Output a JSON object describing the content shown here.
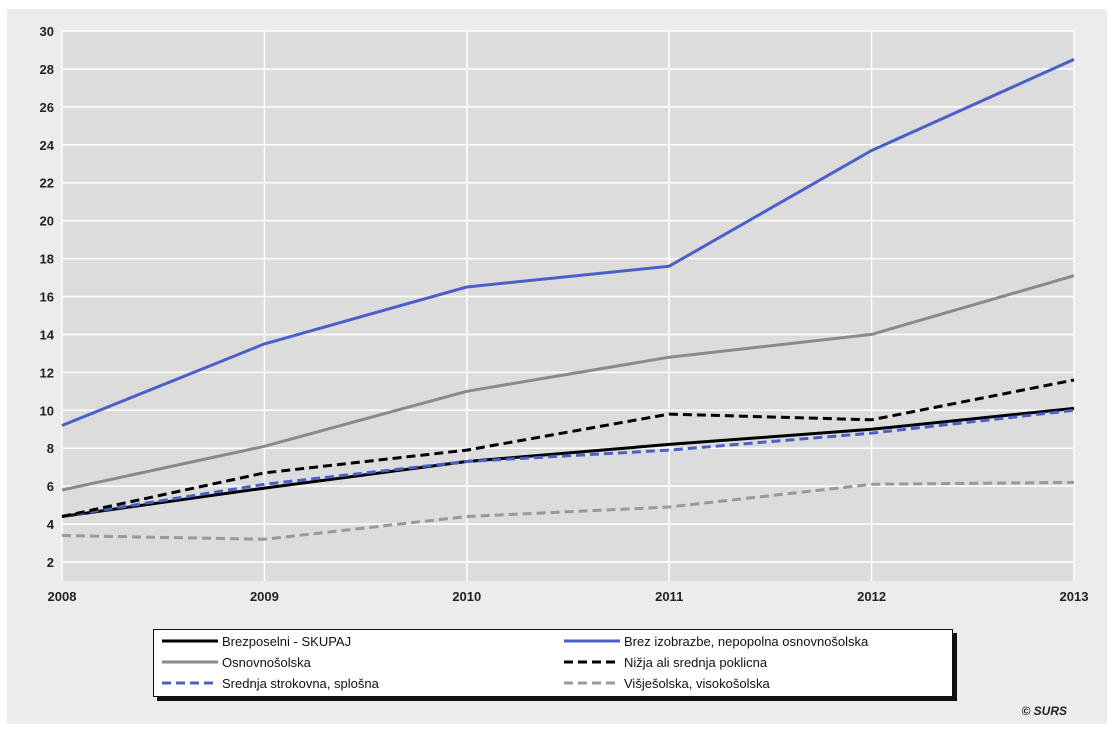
{
  "chart_data": {
    "type": "line",
    "x": [
      "2008",
      "2009",
      "2010",
      "2011",
      "2012",
      "2013"
    ],
    "ylim": [
      1,
      30
    ],
    "yticks": [
      2,
      4,
      6,
      8,
      10,
      12,
      14,
      16,
      18,
      20,
      22,
      24,
      26,
      28,
      30
    ],
    "grid": true,
    "legend_position": "bottom",
    "series": [
      {
        "name": "Brezposelni - SKUPAJ",
        "values": [
          4.4,
          5.9,
          7.3,
          8.2,
          9.0,
          10.1
        ],
        "color": "#000000",
        "dash": "solid"
      },
      {
        "name": "Brez izobrazbe, nepopolna osnovnošolska",
        "values": [
          9.2,
          13.5,
          16.5,
          17.6,
          23.7,
          28.5
        ],
        "color": "#4a5fc8",
        "dash": "solid"
      },
      {
        "name": "Osnovnošolska",
        "values": [
          5.8,
          8.1,
          11.0,
          12.8,
          14.0,
          17.1
        ],
        "color": "#8a8a8a",
        "dash": "solid"
      },
      {
        "name": "Nižja ali srednja poklicna",
        "values": [
          4.4,
          6.7,
          7.9,
          9.8,
          9.5,
          11.6
        ],
        "color": "#000000",
        "dash": "dashed"
      },
      {
        "name": "Srednja strokovna, splošna",
        "values": [
          4.4,
          6.1,
          7.3,
          7.9,
          8.8,
          10.0
        ],
        "color": "#4a5fc8",
        "dash": "dashed"
      },
      {
        "name": "Višješolska, visokošolska",
        "values": [
          3.4,
          3.2,
          4.4,
          4.9,
          6.1,
          6.2
        ],
        "color": "#999999",
        "dash": "dashed"
      }
    ]
  },
  "credit": "© SURS"
}
